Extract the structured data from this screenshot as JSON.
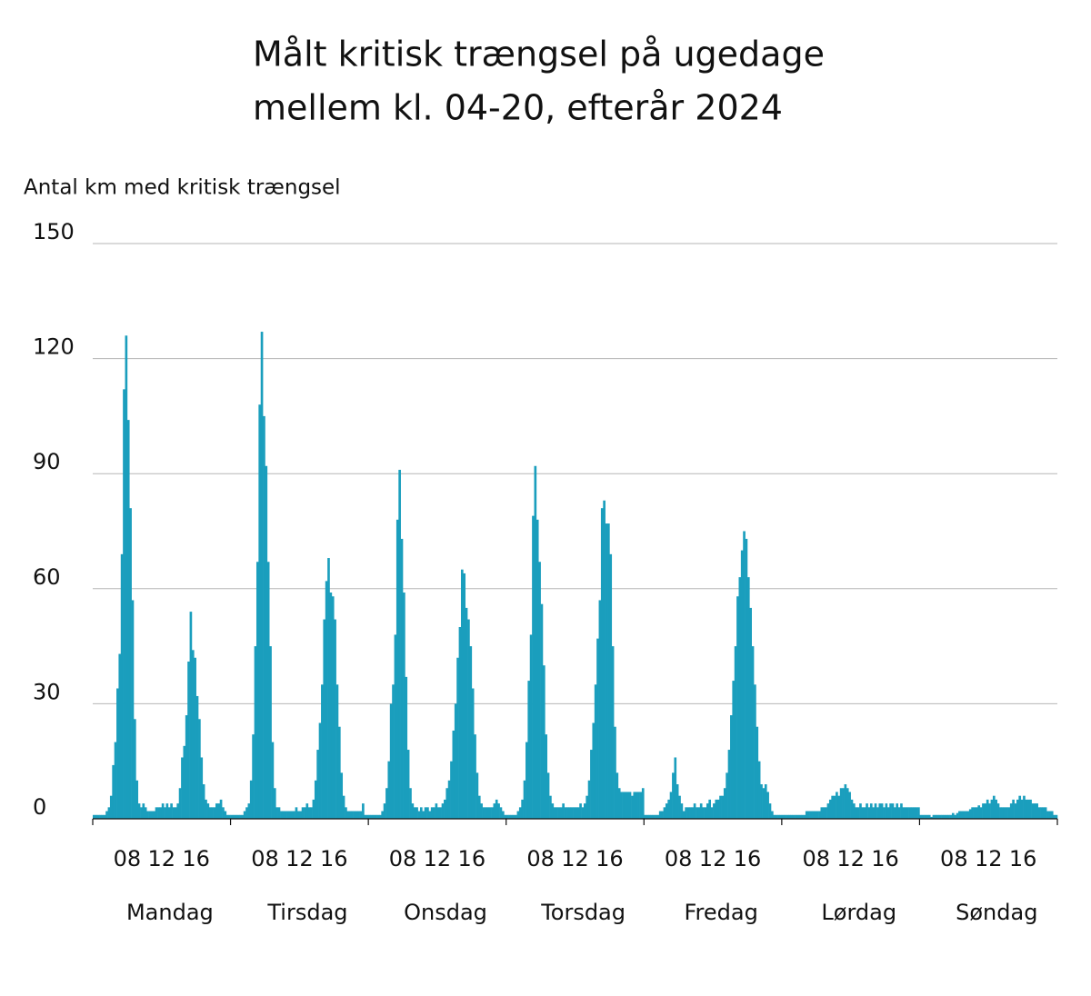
{
  "chart_data": {
    "type": "bar",
    "title": [
      "Målt kritisk trængsel på ugedage",
      "mellem kl. 04-20, efterår 2024"
    ],
    "y_label": "Antal km med kritisk trængsel",
    "ylim": [
      0,
      150
    ],
    "yticks": [
      0,
      30,
      60,
      90,
      120,
      150
    ],
    "grid": true,
    "xlim": [
      4,
      20
    ],
    "xticks": [
      {
        "value": 8,
        "label": "08"
      },
      12,
      16
    ],
    "color": "#1a9ebd",
    "days": [
      {
        "name": "Mandag",
        "values": [
          1,
          1,
          1,
          1,
          1,
          1,
          2,
          3,
          6,
          14,
          20,
          34,
          43,
          69,
          112,
          126,
          104,
          81,
          57,
          26,
          10,
          4,
          3,
          4,
          3,
          2,
          2,
          2,
          2,
          3,
          3,
          3,
          4,
          3,
          4,
          3,
          4,
          3,
          3,
          4,
          8,
          16,
          19,
          27,
          41,
          54,
          44,
          42,
          32,
          26,
          16,
          9,
          5,
          4,
          3,
          3,
          3,
          4,
          4,
          5,
          3,
          2,
          1,
          1
        ]
      },
      {
        "name": "Tirsdag",
        "values": [
          1,
          1,
          1,
          1,
          1,
          1,
          2,
          3,
          4,
          10,
          22,
          45,
          67,
          108,
          127,
          105,
          92,
          67,
          45,
          20,
          8,
          3,
          3,
          2,
          2,
          2,
          2,
          2,
          2,
          2,
          3,
          2,
          2,
          3,
          3,
          4,
          3,
          3,
          5,
          10,
          18,
          25,
          35,
          52,
          62,
          68,
          59,
          58,
          52,
          35,
          24,
          12,
          6,
          3,
          2,
          2,
          2,
          2,
          2,
          2,
          2,
          4,
          1,
          1
        ]
      },
      {
        "name": "Onsdag",
        "values": [
          1,
          1,
          1,
          1,
          1,
          1,
          2,
          4,
          8,
          15,
          30,
          35,
          48,
          78,
          91,
          73,
          59,
          37,
          18,
          8,
          4,
          3,
          3,
          2,
          3,
          2,
          3,
          3,
          2,
          3,
          3,
          4,
          3,
          3,
          4,
          5,
          8,
          10,
          15,
          23,
          30,
          42,
          50,
          65,
          64,
          55,
          52,
          45,
          34,
          22,
          12,
          6,
          4,
          3,
          3,
          3,
          3,
          3,
          4,
          5,
          4,
          3,
          2,
          1
        ]
      },
      {
        "name": "Torsdag",
        "values": [
          1,
          1,
          1,
          1,
          1,
          2,
          3,
          5,
          10,
          20,
          36,
          48,
          79,
          92,
          78,
          67,
          56,
          40,
          22,
          12,
          6,
          4,
          3,
          3,
          3,
          3,
          4,
          3,
          3,
          3,
          3,
          3,
          3,
          3,
          4,
          3,
          4,
          6,
          10,
          18,
          25,
          35,
          47,
          57,
          81,
          83,
          77,
          77,
          69,
          45,
          24,
          12,
          8,
          7,
          7,
          7,
          7,
          7,
          6,
          7,
          7,
          7,
          7,
          8
        ]
      },
      {
        "name": "Fredag",
        "values": [
          1,
          1,
          1,
          1,
          1,
          1,
          1,
          2,
          2,
          3,
          4,
          5,
          7,
          12,
          16,
          9,
          6,
          4,
          2,
          3,
          3,
          3,
          3,
          4,
          3,
          3,
          4,
          3,
          3,
          4,
          5,
          3,
          4,
          5,
          5,
          6,
          6,
          8,
          12,
          18,
          27,
          36,
          45,
          58,
          63,
          70,
          75,
          73,
          63,
          55,
          45,
          35,
          24,
          15,
          9,
          8,
          9,
          7,
          4,
          2,
          1,
          1,
          1,
          1
        ]
      },
      {
        "name": "Lørdag",
        "values": [
          1,
          1,
          1,
          1,
          1,
          1,
          1,
          1,
          1,
          1,
          1,
          2,
          2,
          2,
          2,
          2,
          2,
          2,
          3,
          3,
          3,
          4,
          5,
          6,
          6,
          7,
          6,
          8,
          8,
          9,
          8,
          7,
          5,
          4,
          3,
          3,
          4,
          3,
          3,
          4,
          3,
          4,
          3,
          4,
          3,
          4,
          4,
          3,
          4,
          3,
          4,
          4,
          3,
          4,
          3,
          4,
          3,
          3,
          3,
          3,
          3,
          3,
          3,
          3
        ]
      },
      {
        "name": "Søndag",
        "values": [
          1,
          1,
          1,
          1,
          1,
          0.5,
          1,
          1,
          1,
          1,
          1,
          1,
          1,
          1,
          1,
          1.5,
          1,
          1.5,
          2,
          2,
          2,
          2,
          2,
          2.5,
          3,
          3,
          3,
          3.5,
          3,
          4,
          4,
          5,
          4,
          5,
          6,
          5,
          4,
          3,
          3,
          3,
          3,
          3,
          4,
          5,
          4,
          5,
          6,
          5,
          6,
          5,
          5,
          5,
          4,
          4,
          4,
          3,
          3,
          3,
          3,
          2,
          2,
          2,
          1,
          1
        ]
      }
    ]
  }
}
